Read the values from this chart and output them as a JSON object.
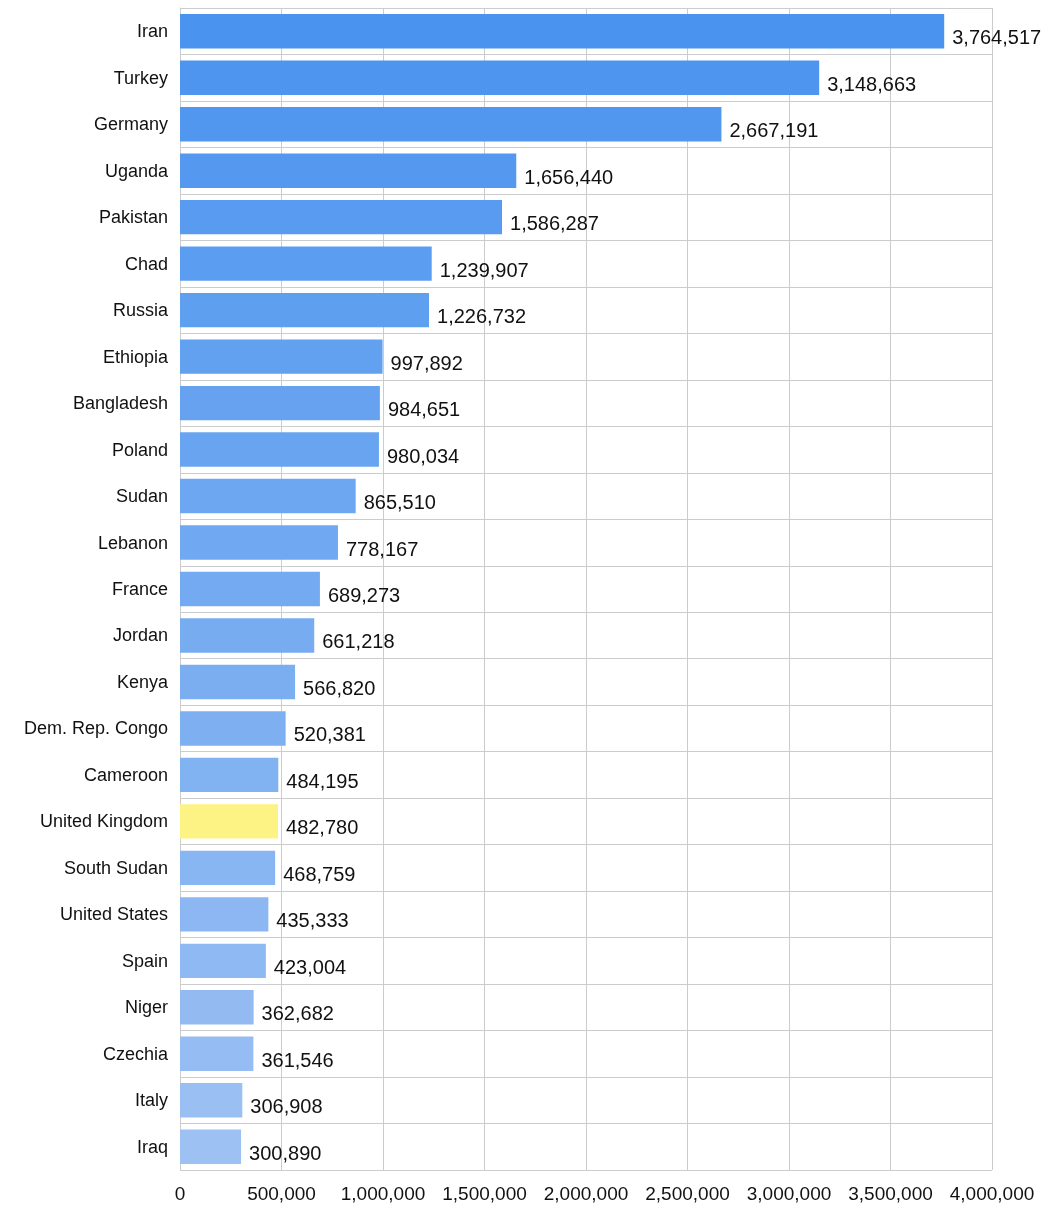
{
  "chart_data": {
    "type": "bar",
    "orientation": "horizontal",
    "categories": [
      "Iran",
      "Turkey",
      "Germany",
      "Uganda",
      "Pakistan",
      "Chad",
      "Russia",
      "Ethiopia",
      "Bangladesh",
      "Poland",
      "Sudan",
      "Lebanon",
      "France",
      "Jordan",
      "Kenya",
      "Dem. Rep. Congo",
      "Cameroon",
      "United Kingdom",
      "South Sudan",
      "United States",
      "Spain",
      "Niger",
      "Czechia",
      "Italy",
      "Iraq"
    ],
    "values": [
      3764517,
      3148663,
      2667191,
      1656440,
      1586287,
      1239907,
      1226732,
      997892,
      984651,
      980034,
      865510,
      778167,
      689273,
      661218,
      566820,
      520381,
      484195,
      482780,
      468759,
      435333,
      423004,
      362682,
      361546,
      306908,
      300890
    ],
    "colors": [
      "#4a93ef",
      "#4d95ef",
      "#5197ef",
      "#5499ef",
      "#589bf0",
      "#5b9df0",
      "#5f9ff0",
      "#62a0f0",
      "#66a2f0",
      "#69a4f0",
      "#6da6f1",
      "#70a8f1",
      "#73aaf1",
      "#77acf1",
      "#7aaef1",
      "#7eb0f1",
      "#81b2f2",
      "#fdf284",
      "#88b6f2",
      "#8cb7f2",
      "#8fb9f2",
      "#93bbf2",
      "#96bdf3",
      "#9abff3",
      "#9dc1f3"
    ],
    "xlim": [
      0,
      4000000
    ],
    "xticks": [
      0,
      {
        "value": 500000,
        "label": "500,000"
      },
      {
        "value": 1000000,
        "label": "1,000,000"
      },
      {
        "value": 1500000,
        "label": "1,500,000"
      },
      {
        "value": 2000000,
        "label": "2,000,000"
      },
      {
        "value": 2500000,
        "label": "2,500,000"
      },
      {
        "value": 3000000,
        "label": "3,000,000"
      },
      {
        "value": 3500000,
        "label": "3,500,000"
      },
      {
        "value": 4000000,
        "label": "4,000,000"
      }
    ],
    "value_labels": [
      "3,764,517",
      "3,148,663",
      "2,667,191",
      "1,656,440",
      "1,586,287",
      "1,239,907",
      "1,226,732",
      "997,892",
      "984,651",
      "980,034",
      "865,510",
      "778,167",
      "689,273",
      "661,218",
      "566,820",
      "520,381",
      "484,195",
      "482,780",
      "468,759",
      "435,333",
      "423,004",
      "362,682",
      "361,546",
      "306,908",
      "300,890"
    ],
    "grid": true
  }
}
